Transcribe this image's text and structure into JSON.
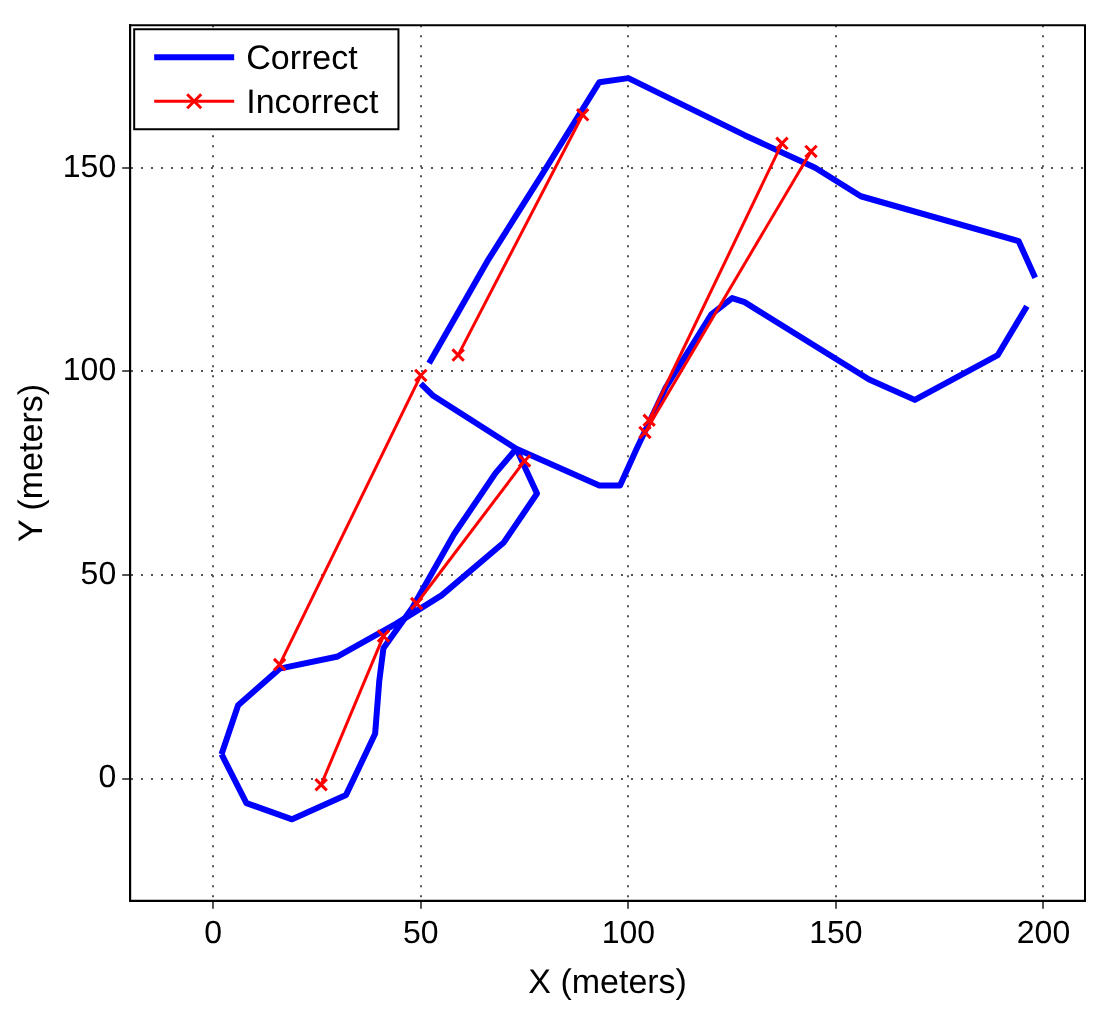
{
  "chart_data": {
    "type": "line",
    "xlabel": "X (meters)",
    "ylabel": "Y (meters)",
    "xlim": [
      -20,
      210
    ],
    "ylim": [
      -30,
      185
    ],
    "xticks": [
      0,
      50,
      100,
      150,
      200
    ],
    "yticks": [
      0,
      50,
      100,
      150
    ],
    "grid": true,
    "legend": "top left",
    "series": [
      {
        "name": "Correct",
        "color": "#0000ff",
        "marker": "none",
        "x": [
          73,
          78,
          70,
          55,
          44,
          30,
          16,
          6,
          2
        ],
        "values": [
          81,
          70,
          58,
          45,
          38,
          30,
          27,
          18,
          6
        ]
      },
      {
        "color": "#0000ff",
        "marker": "none",
        "x": [
          2,
          8,
          19,
          32,
          39,
          40,
          41,
          48,
          58,
          68,
          73
        ],
        "values": [
          6,
          -6,
          -10,
          -4,
          11,
          24,
          32,
          42,
          60,
          75,
          81
        ]
      },
      {
        "color": "#0000ff",
        "marker": "none",
        "x": [
          52,
          66,
          79,
          93,
          100,
          128,
          145,
          156,
          194,
          198
        ],
        "values": [
          102,
          127,
          148,
          171,
          172,
          158,
          150,
          143,
          132,
          123
        ]
      },
      {
        "color": "#0000ff",
        "marker": "none",
        "x": [
          196,
          189,
          169,
          158,
          128,
          125,
          120,
          109,
          102,
          98,
          93,
          73,
          53,
          50
        ],
        "values": [
          116,
          104,
          93,
          98,
          117,
          118,
          114,
          96,
          81,
          72,
          72,
          81,
          94,
          97
        ]
      },
      {
        "name": "Incorrect",
        "color": "#ff0000",
        "marker": "cross",
        "x": [
          16,
          50
        ],
        "values": [
          28,
          99
        ]
      },
      {
        "color": "#ff0000",
        "marker": "cross",
        "x": [
          26,
          41
        ],
        "values": [
          -1.5,
          35
        ]
      },
      {
        "color": "#ff0000",
        "marker": "cross",
        "x": [
          49,
          75
        ],
        "values": [
          43,
          78
        ]
      },
      {
        "color": "#ff0000",
        "marker": "cross",
        "x": [
          59,
          89
        ],
        "values": [
          104,
          163
        ]
      },
      {
        "color": "#ff0000",
        "marker": "cross",
        "x": [
          105,
          137
        ],
        "values": [
          88,
          156
        ]
      },
      {
        "color": "#ff0000",
        "marker": "cross",
        "x": [
          104,
          144
        ],
        "values": [
          85,
          154
        ]
      }
    ]
  }
}
